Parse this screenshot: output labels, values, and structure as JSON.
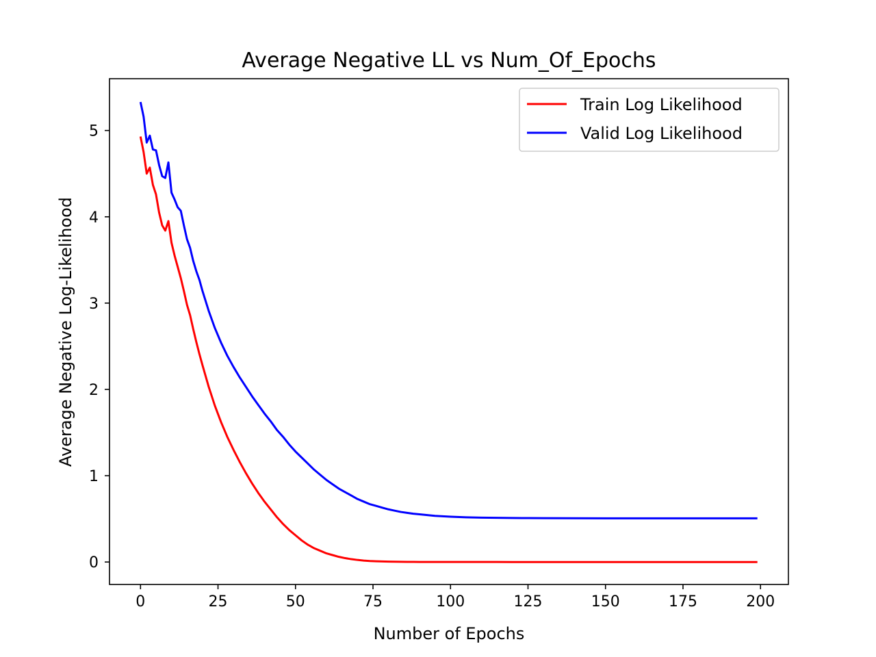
{
  "chart_data": {
    "type": "line",
    "title": "Average Negative LL vs Num_Of_Epochs",
    "xlabel": "Number of Epochs",
    "ylabel": "Average Negative Log-Likelihood",
    "xlim": [
      -10,
      209
    ],
    "ylim": [
      -0.26,
      5.6
    ],
    "xticks": [
      0,
      25,
      50,
      75,
      100,
      125,
      150,
      175,
      200
    ],
    "yticks": [
      0,
      1,
      2,
      3,
      4,
      5
    ],
    "grid": false,
    "legend_position": "top-right",
    "series": [
      {
        "name": "Train Log Likelihood",
        "color": "#ff0000",
        "x": [
          0,
          1,
          2,
          3,
          4,
          5,
          6,
          7,
          8,
          9,
          10,
          11,
          12,
          13,
          14,
          15,
          16,
          17,
          18,
          19,
          20,
          22,
          24,
          26,
          28,
          30,
          32,
          34,
          36,
          38,
          40,
          42,
          44,
          46,
          48,
          50,
          52,
          54,
          56,
          58,
          60,
          62,
          64,
          66,
          68,
          70,
          72,
          74,
          76,
          78,
          80,
          82,
          84,
          86,
          88,
          90,
          95,
          100,
          105,
          110,
          115,
          120,
          125,
          130,
          140,
          150,
          160,
          170,
          180,
          190,
          199
        ],
        "y": [
          4.93,
          4.75,
          4.5,
          4.57,
          4.37,
          4.26,
          4.05,
          3.9,
          3.84,
          3.95,
          3.7,
          3.55,
          3.42,
          3.29,
          3.14,
          2.98,
          2.86,
          2.7,
          2.55,
          2.41,
          2.28,
          2.03,
          1.81,
          1.62,
          1.45,
          1.3,
          1.16,
          1.03,
          0.91,
          0.8,
          0.7,
          0.61,
          0.52,
          0.44,
          0.37,
          0.31,
          0.25,
          0.2,
          0.16,
          0.13,
          0.1,
          0.08,
          0.06,
          0.045,
          0.033,
          0.024,
          0.017,
          0.012,
          0.009,
          0.007,
          0.005,
          0.004,
          0.003,
          0.002,
          0.0015,
          0.001,
          0.0008,
          0.0006,
          0.0005,
          0.0004,
          0.0003,
          0.0002,
          0.0002,
          0.0001,
          0.0001,
          0.0001,
          0.0,
          0.0,
          0.0,
          0.0,
          0.0
        ]
      },
      {
        "name": "Valid Log Likelihood",
        "color": "#0000ff",
        "x": [
          0,
          1,
          2,
          3,
          4,
          5,
          6,
          7,
          8,
          9,
          10,
          11,
          12,
          13,
          14,
          15,
          16,
          17,
          18,
          19,
          20,
          22,
          24,
          26,
          28,
          30,
          32,
          34,
          36,
          38,
          40,
          42,
          44,
          46,
          48,
          50,
          52,
          54,
          56,
          58,
          60,
          62,
          64,
          66,
          68,
          70,
          72,
          74,
          76,
          78,
          80,
          82,
          84,
          86,
          88,
          90,
          95,
          100,
          105,
          110,
          115,
          120,
          125,
          130,
          140,
          150,
          160,
          170,
          180,
          190,
          199
        ],
        "y": [
          5.33,
          5.16,
          4.86,
          4.94,
          4.78,
          4.77,
          4.6,
          4.47,
          4.45,
          4.63,
          4.28,
          4.2,
          4.11,
          4.07,
          3.9,
          3.74,
          3.64,
          3.49,
          3.37,
          3.27,
          3.14,
          2.91,
          2.71,
          2.54,
          2.39,
          2.26,
          2.14,
          2.03,
          1.92,
          1.82,
          1.72,
          1.63,
          1.53,
          1.45,
          1.36,
          1.28,
          1.21,
          1.14,
          1.07,
          1.01,
          0.95,
          0.9,
          0.85,
          0.81,
          0.77,
          0.73,
          0.7,
          0.67,
          0.65,
          0.63,
          0.61,
          0.595,
          0.58,
          0.57,
          0.56,
          0.553,
          0.535,
          0.525,
          0.518,
          0.514,
          0.512,
          0.51,
          0.509,
          0.508,
          0.507,
          0.506,
          0.506,
          0.506,
          0.506,
          0.506,
          0.506
        ]
      }
    ]
  }
}
